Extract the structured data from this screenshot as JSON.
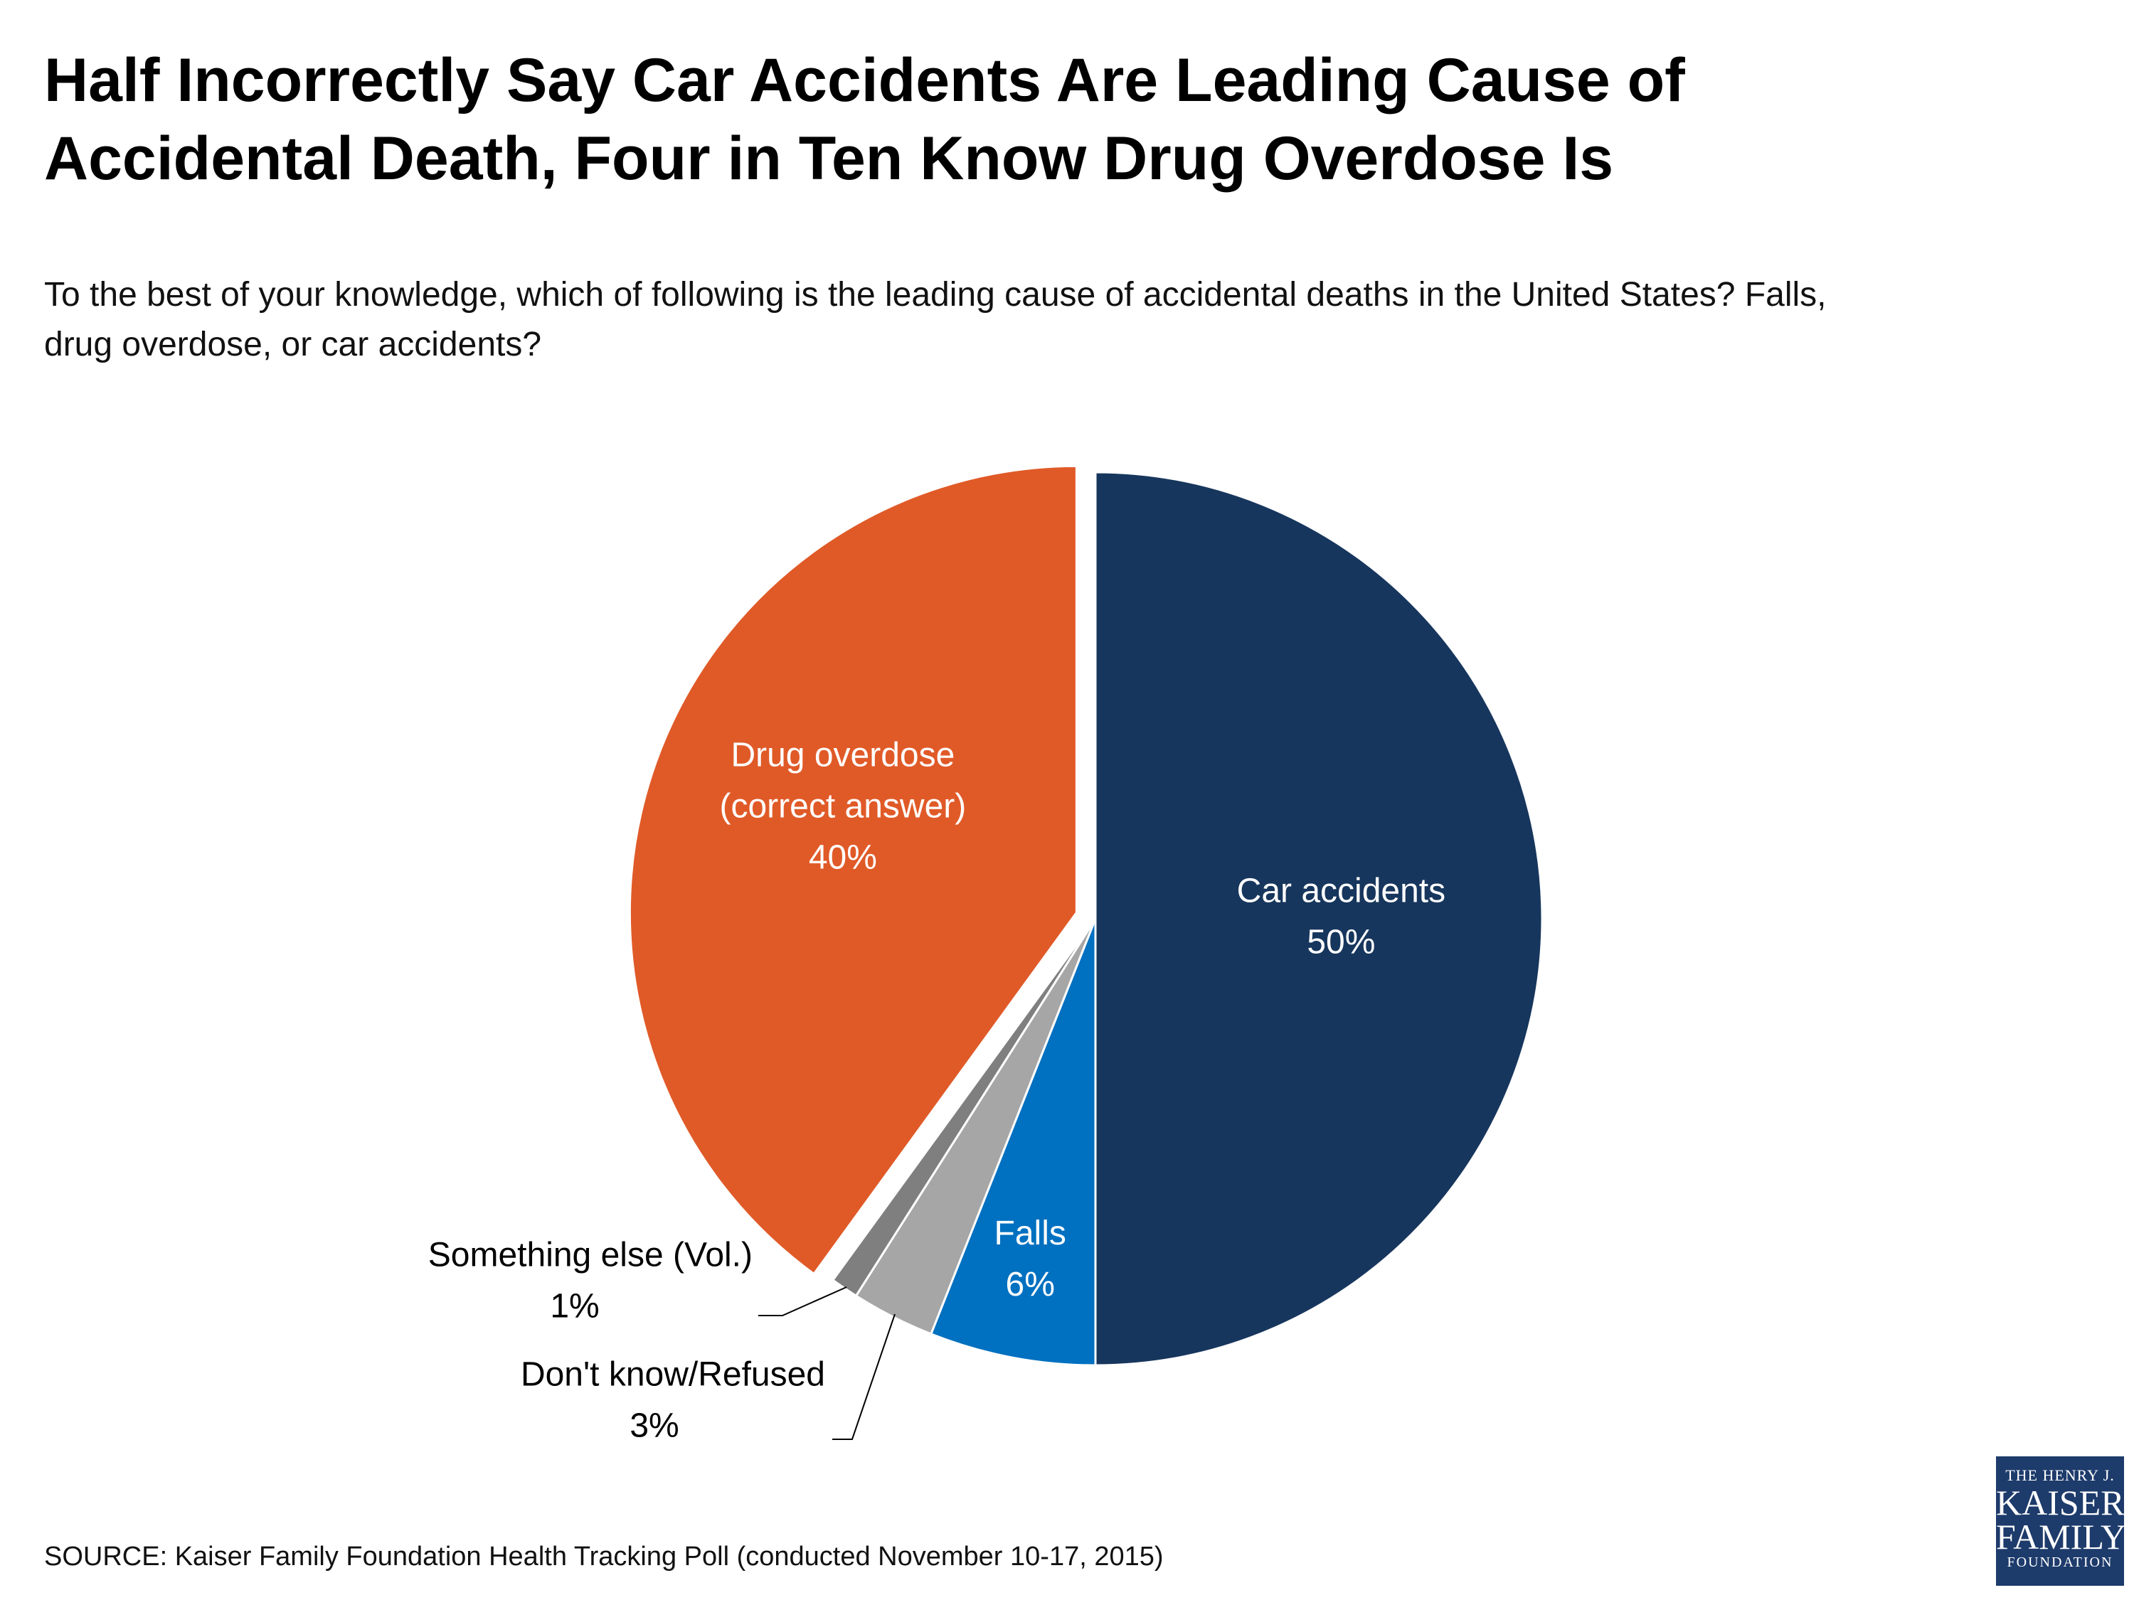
{
  "title_lines": [
    "Half Incorrectly Say Car Accidents Are Leading Cause of",
    "Accidental Death, Four in Ten Know Drug Overdose Is"
  ],
  "subtitle_lines": [
    "To the best of your knowledge, which of following is the leading cause of accidental deaths in the United States? Falls,",
    "drug overdose, or car accidents?"
  ],
  "chart_data": {
    "type": "pie",
    "slices": [
      {
        "label": "Car accidents",
        "value": 50,
        "display": "50%",
        "color": "#17365d",
        "label_color": "#ffffff",
        "exploded": false
      },
      {
        "label": "Falls",
        "value": 6,
        "display": "6%",
        "color": "#0070c0",
        "label_color": "#ffffff",
        "exploded": false
      },
      {
        "label": "Don't know/Refused",
        "value": 3,
        "display": "3%",
        "color": "#a6a6a6",
        "label_color": "#000000",
        "exploded": false
      },
      {
        "label": "Something else (Vol.)",
        "value": 1,
        "display": "1%",
        "color": "#7f7f7f",
        "label_color": "#000000",
        "exploded": false
      },
      {
        "label": "Drug overdose",
        "sublabel": "(correct answer)",
        "value": 40,
        "display": "40%",
        "color": "#e05a28",
        "label_color": "#ffffff",
        "exploded": true
      }
    ]
  },
  "source": "SOURCE: Kaiser Family Foundation Health Tracking Poll (conducted November 10-17, 2015)",
  "logo": {
    "line1": "THE HENRY J.",
    "line2": "KAISER",
    "line3": "FAMILY",
    "line4": "FOUNDATION"
  }
}
